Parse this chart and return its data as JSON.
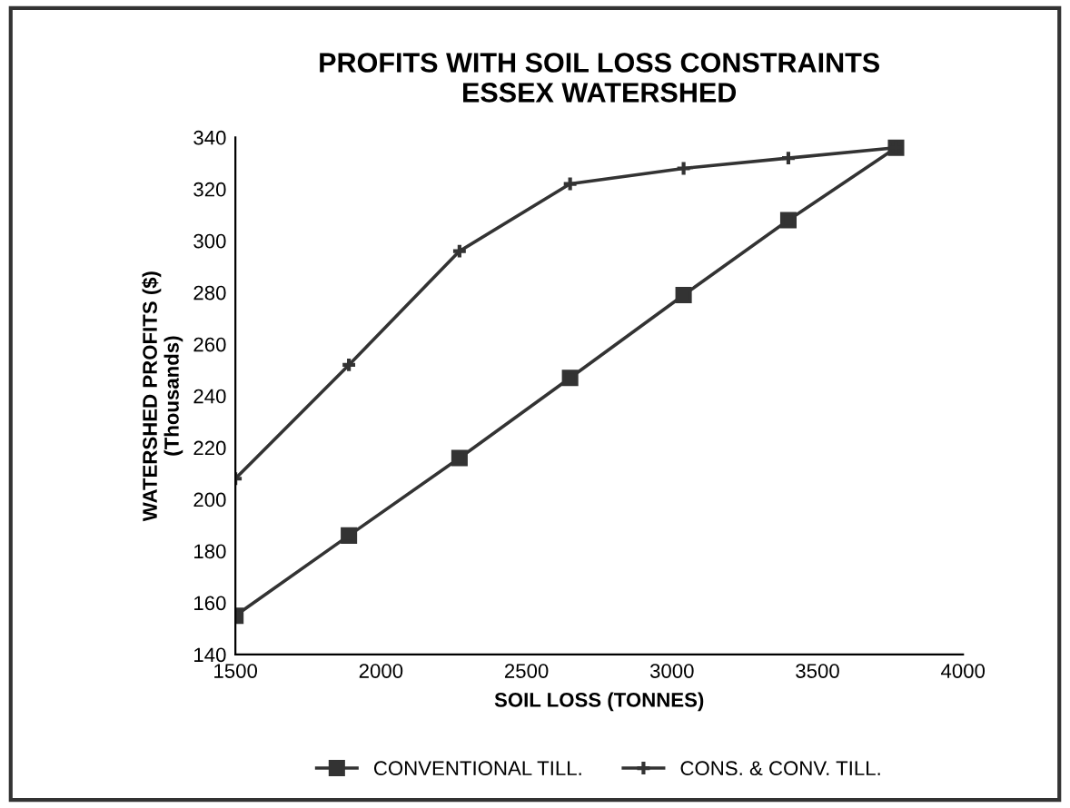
{
  "chart_data": {
    "type": "line",
    "title": "PROFITS WITH SOIL LOSS CONSTRAINTS\nESSEX WATERSHED",
    "xlabel": "SOIL LOSS (TONNES)",
    "ylabel": "WATERSHED PROFITS ($)\n(Thousands)",
    "x": [
      1500,
      1890,
      2270,
      2650,
      3040,
      3400,
      3770
    ],
    "series": [
      {
        "name": "CONVENTIONAL TILL.",
        "color": "#333333",
        "marker": "square",
        "values": [
          155,
          186,
          216,
          247,
          279,
          308,
          336
        ]
      },
      {
        "name": "CONS. & CONV. TILL.",
        "color": "#333333",
        "marker": "cross",
        "values": [
          208,
          252,
          296,
          322,
          328,
          332,
          336
        ]
      }
    ],
    "xlim": [
      1500,
      4000
    ],
    "xticks": [
      1500,
      2000,
      2500,
      3000,
      3500,
      4000
    ],
    "ylim": [
      140,
      340
    ],
    "yticks": [
      140,
      160,
      180,
      200,
      220,
      240,
      260,
      280,
      300,
      320,
      340
    ],
    "grid": false,
    "legend": "bottom",
    "line_style": "solid"
  }
}
